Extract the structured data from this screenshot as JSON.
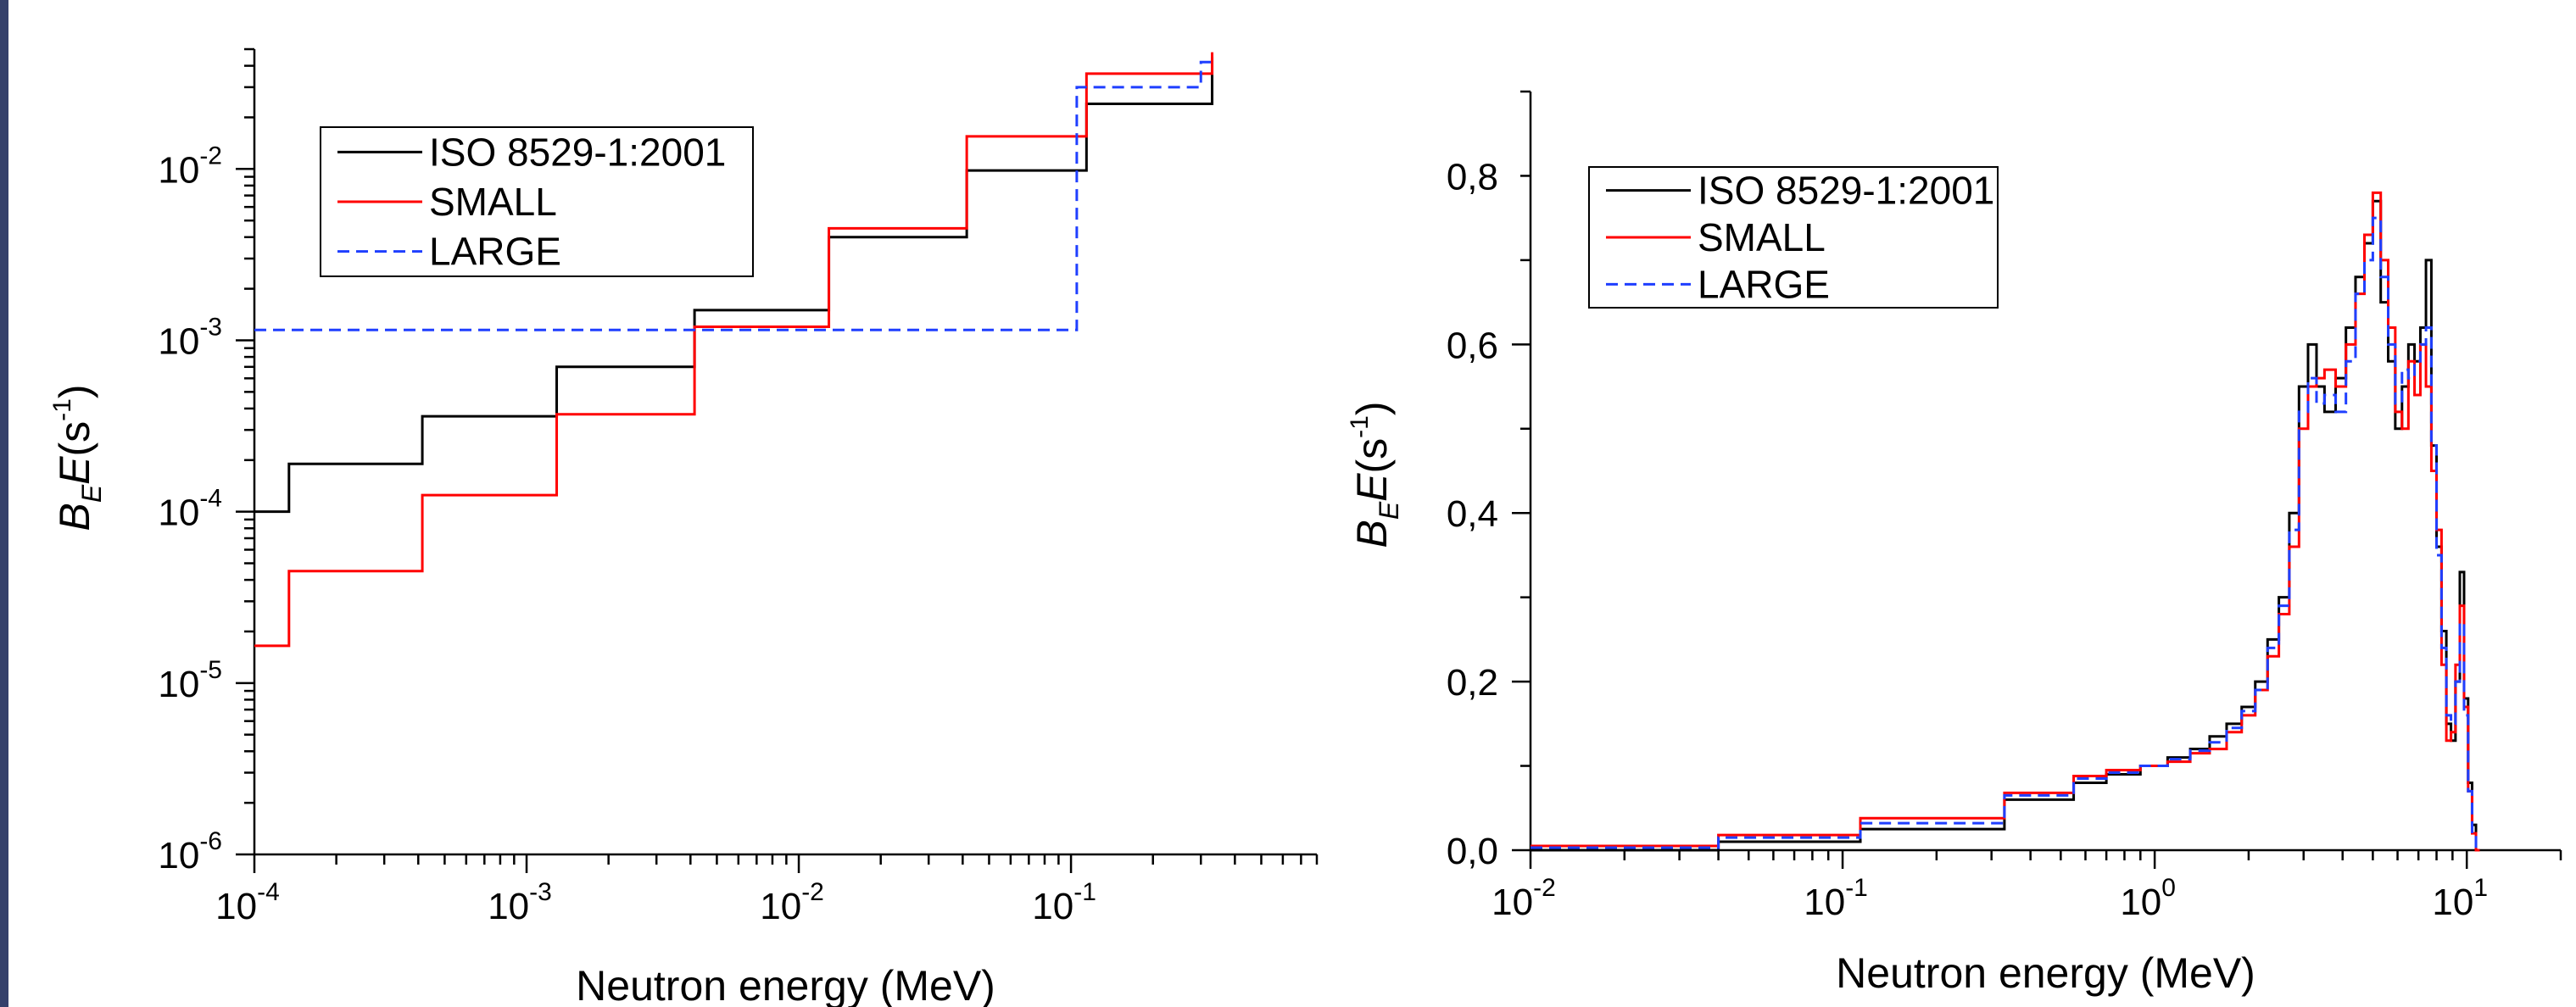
{
  "colors": {
    "iso": "#000000",
    "small": "#ff0000",
    "large": "#1f3fff"
  },
  "chart_data": [
    {
      "type": "line",
      "xscale": "log",
      "yscale": "log",
      "xlim": [
        0.0001,
        0.8
      ],
      "ylim": [
        1e-06,
        0.05
      ],
      "xlabel": "Neutron energy (MeV)",
      "ylabel_parts": {
        "B": "B",
        "Bsub": "E",
        "E": "E",
        "unit_open": "(s",
        "unit_sup": "-1",
        "unit_close": ")"
      },
      "xticks": [
        {
          "base": "10",
          "exp": "-4",
          "value": 0.0001
        },
        {
          "base": "10",
          "exp": "-3",
          "value": 0.001
        },
        {
          "base": "10",
          "exp": "-2",
          "value": 0.01
        },
        {
          "base": "10",
          "exp": "-1",
          "value": 0.1
        }
      ],
      "yticks": [
        {
          "base": "10",
          "exp": "-6",
          "value": 1e-06
        },
        {
          "base": "10",
          "exp": "-5",
          "value": 1e-05
        },
        {
          "base": "10",
          "exp": "-4",
          "value": 0.0001
        },
        {
          "base": "10",
          "exp": "-3",
          "value": 0.001
        },
        {
          "base": "10",
          "exp": "-2",
          "value": 0.01
        }
      ],
      "legend": {
        "placement": "top-left"
      },
      "series": [
        {
          "name": "ISO 8529-1:2001",
          "style": "solid",
          "color": "#000000",
          "x": [
            0.0001,
            0.000134,
            0.000414,
            0.00129,
            0.00414,
            0.0129,
            0.0414,
            0.114,
            0.33
          ],
          "y": [
            0.0001,
            0.00019,
            0.00036,
            0.0007,
            0.0015,
            0.004,
            0.0098,
            0.024,
            0.045
          ]
        },
        {
          "name": "SMALL",
          "style": "solid",
          "color": "#ff0000",
          "x": [
            0.0001,
            0.000134,
            0.000414,
            0.00129,
            0.00414,
            0.0129,
            0.0414,
            0.114,
            0.33
          ],
          "y": [
            1.65e-05,
            4.5e-05,
            0.000125,
            0.00037,
            0.0012,
            0.0045,
            0.0155,
            0.036,
            0.048
          ]
        },
        {
          "name": "LARGE",
          "style": "dashed",
          "color": "#1f3fff",
          "x": [
            0.0001,
            0.105,
            0.3,
            0.33
          ],
          "y": [
            0.00115,
            0.03,
            0.042,
            0.042
          ]
        }
      ]
    },
    {
      "type": "line",
      "xscale": "log",
      "yscale": "linear",
      "xlim": [
        0.01,
        20
      ],
      "ylim": [
        0,
        0.9
      ],
      "xlabel": "Neutron energy (MeV)",
      "ylabel_parts": {
        "B": "B",
        "Bsub": "E",
        "E": "E",
        "unit_open": "(s",
        "unit_sup": "-1",
        "unit_close": ")"
      },
      "xticks": [
        {
          "base": "10",
          "exp": "-2",
          "value": 0.01
        },
        {
          "base": "10",
          "exp": "-1",
          "value": 0.1
        },
        {
          "base": "10",
          "exp": "0",
          "value": 1
        },
        {
          "base": "10",
          "exp": "1",
          "value": 10
        }
      ],
      "yticks": [
        {
          "label": "0,0",
          "value": 0
        },
        {
          "label": "0,2",
          "value": 0.2
        },
        {
          "label": "0,4",
          "value": 0.4
        },
        {
          "label": "0,6",
          "value": 0.6
        },
        {
          "label": "0,8",
          "value": 0.8
        }
      ],
      "legend": {
        "placement": "top-left"
      },
      "series": [
        {
          "name": "ISO 8529-1:2001",
          "style": "solid",
          "color": "#000000",
          "x": [
            0.01,
            0.04,
            0.114,
            0.33,
            0.55,
            0.7,
            0.9,
            1.1,
            1.3,
            1.5,
            1.7,
            1.9,
            2.1,
            2.3,
            2.5,
            2.7,
            2.9,
            3.1,
            3.3,
            3.5,
            3.8,
            4.1,
            4.4,
            4.7,
            5.0,
            5.3,
            5.6,
            5.9,
            6.2,
            6.5,
            6.8,
            7.1,
            7.4,
            7.7,
            8.0,
            8.3,
            8.6,
            8.9,
            9.2,
            9.5,
            9.8,
            10.1,
            10.4,
            10.7,
            11.0
          ],
          "y": [
            0.0,
            0.01,
            0.025,
            0.06,
            0.08,
            0.09,
            0.1,
            0.11,
            0.12,
            0.135,
            0.15,
            0.17,
            0.2,
            0.25,
            0.3,
            0.4,
            0.55,
            0.6,
            0.55,
            0.52,
            0.56,
            0.62,
            0.68,
            0.72,
            0.77,
            0.65,
            0.58,
            0.5,
            0.55,
            0.6,
            0.58,
            0.62,
            0.7,
            0.48,
            0.36,
            0.26,
            0.15,
            0.13,
            0.2,
            0.33,
            0.18,
            0.08,
            0.03,
            0.0,
            0.0
          ]
        },
        {
          "name": "SMALL",
          "style": "solid",
          "color": "#ff0000",
          "x": [
            0.01,
            0.04,
            0.114,
            0.33,
            0.55,
            0.7,
            0.9,
            1.1,
            1.3,
            1.5,
            1.7,
            1.9,
            2.1,
            2.3,
            2.5,
            2.7,
            2.9,
            3.1,
            3.3,
            3.5,
            3.8,
            4.1,
            4.4,
            4.7,
            5.0,
            5.3,
            5.6,
            5.9,
            6.2,
            6.5,
            6.8,
            7.1,
            7.4,
            7.7,
            8.0,
            8.3,
            8.6,
            8.9,
            9.2,
            9.5,
            9.8,
            10.1,
            10.4,
            10.7,
            11.0
          ],
          "y": [
            0.005,
            0.018,
            0.038,
            0.068,
            0.088,
            0.095,
            0.1,
            0.105,
            0.115,
            0.12,
            0.14,
            0.16,
            0.19,
            0.23,
            0.28,
            0.36,
            0.5,
            0.55,
            0.56,
            0.57,
            0.55,
            0.6,
            0.66,
            0.73,
            0.78,
            0.7,
            0.62,
            0.52,
            0.5,
            0.58,
            0.54,
            0.6,
            0.55,
            0.45,
            0.38,
            0.22,
            0.13,
            0.14,
            0.22,
            0.29,
            0.17,
            0.07,
            0.02,
            0.0,
            0.0
          ]
        },
        {
          "name": "LARGE",
          "style": "dashed",
          "color": "#1f3fff",
          "x": [
            0.01,
            0.04,
            0.114,
            0.33,
            0.55,
            0.7,
            0.9,
            1.1,
            1.3,
            1.5,
            1.7,
            1.9,
            2.1,
            2.3,
            2.5,
            2.7,
            2.9,
            3.1,
            3.3,
            3.5,
            3.8,
            4.1,
            4.4,
            4.7,
            5.0,
            5.3,
            5.6,
            5.9,
            6.2,
            6.5,
            6.8,
            7.1,
            7.4,
            7.7,
            8.0,
            8.3,
            8.6,
            8.9,
            9.2,
            9.5,
            9.8,
            10.1,
            10.4,
            10.7,
            11.0
          ],
          "y": [
            0.003,
            0.015,
            0.032,
            0.065,
            0.085,
            0.092,
            0.1,
            0.108,
            0.118,
            0.128,
            0.145,
            0.165,
            0.19,
            0.24,
            0.29,
            0.38,
            0.52,
            0.56,
            0.53,
            0.54,
            0.52,
            0.58,
            0.66,
            0.7,
            0.75,
            0.68,
            0.6,
            0.53,
            0.57,
            0.56,
            0.58,
            0.6,
            0.62,
            0.48,
            0.35,
            0.24,
            0.16,
            0.15,
            0.2,
            0.27,
            0.16,
            0.07,
            0.02,
            0.0,
            0.0
          ]
        }
      ]
    }
  ]
}
